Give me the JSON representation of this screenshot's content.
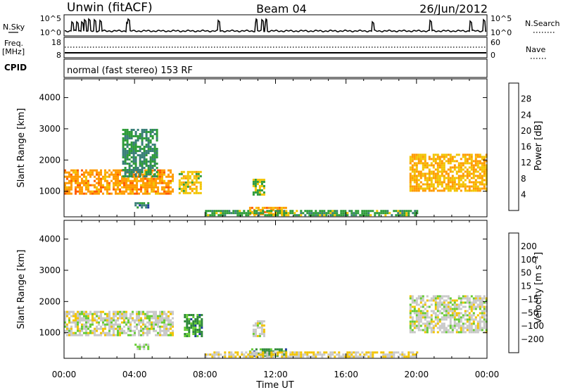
{
  "header": {
    "radar": "Unwin (fitACF)",
    "beam": "Beam 04",
    "date": "26/Jun/2012"
  },
  "top_panels": {
    "nsky": {
      "label": "N.Sky",
      "ticks": [
        "10^5",
        "10^0"
      ]
    },
    "nsearch": {
      "label": "N.Search",
      "ticks": [
        "10^5",
        "10^0"
      ]
    },
    "freq": {
      "label_line1": "Freq.",
      "label_line2": "[MHz]",
      "ticks": [
        "18",
        "8"
      ]
    },
    "nave": {
      "label": "Nave",
      "ticks": [
        "60",
        "0"
      ]
    },
    "cpid": {
      "label": "CPID",
      "text": "normal (fast stereo) 153 RF"
    }
  },
  "chart_data": [
    {
      "type": "heatmap",
      "title": "",
      "xlabel": "Time UT",
      "ylabel": "Slant Range [km]",
      "x_ticks": [
        "00:00",
        "04:00",
        "08:00",
        "12:00",
        "16:00",
        "20:00",
        "00:00"
      ],
      "y_ticks": [
        1000,
        2000,
        3000,
        4000
      ],
      "xlim_hours": [
        0,
        24
      ],
      "ylim_km": [
        180,
        4600
      ],
      "colorbar": {
        "label": "Power [dB]",
        "ticks": [
          "28",
          "24",
          "20",
          "16",
          "12",
          "8",
          "4"
        ],
        "colors": [
          "#ff0000",
          "#ff5a00",
          "#ff9a00",
          "#f2c400",
          "#2f9c3a",
          "#3a7f78",
          "#1f3d9c",
          "#0a0aff"
        ],
        "range": [
          0,
          32
        ]
      },
      "regions": [
        {
          "t0": 0.0,
          "t1": 6.2,
          "r0": 900,
          "r1": 1700,
          "value": 22
        },
        {
          "t0": 3.3,
          "t1": 5.3,
          "r0": 1500,
          "r1": 3000,
          "value": 12
        },
        {
          "t0": 6.5,
          "t1": 7.8,
          "r0": 950,
          "r1": 1650,
          "value": 18
        },
        {
          "t0": 4.0,
          "t1": 4.8,
          "r0": 450,
          "r1": 650,
          "value": 10
        },
        {
          "t0": 10.7,
          "t1": 11.3,
          "r0": 900,
          "r1": 1400,
          "value": 16
        },
        {
          "t0": 10.5,
          "t1": 12.6,
          "r0": 280,
          "r1": 500,
          "value": 22
        },
        {
          "t0": 8.0,
          "t1": 20.0,
          "r0": 220,
          "r1": 400,
          "value": 14
        },
        {
          "t0": 19.6,
          "t1": 24.0,
          "r0": 1000,
          "r1": 2200,
          "value": 20
        }
      ]
    },
    {
      "type": "heatmap",
      "title": "",
      "xlabel": "Time UT",
      "ylabel": "Slant Range [km]",
      "x_ticks": [
        "00:00",
        "04:00",
        "08:00",
        "12:00",
        "16:00",
        "20:00",
        "00:00"
      ],
      "y_ticks": [
        1000,
        2000,
        3000,
        4000
      ],
      "xlim_hours": [
        0,
        24
      ],
      "ylim_km": [
        180,
        4600
      ],
      "colorbar": {
        "label": "Velocity [m s^-1]",
        "ticks": [
          "200",
          "100",
          "50",
          "15",
          "−15",
          "−50",
          "−100",
          "−200"
        ],
        "colors": [
          "#ff0000",
          "#ff5a00",
          "#ff9a00",
          "#f2c400",
          "#c8c8c8",
          "#66cc33",
          "#2f8a3a",
          "#1f3d9c",
          "#0a0aff"
        ],
        "range": [
          -250,
          250
        ]
      },
      "regions": [
        {
          "t0": 0.0,
          "t1": 6.2,
          "r0": 900,
          "r1": 1700,
          "value": 0
        },
        {
          "t0": 19.6,
          "t1": 24.0,
          "r0": 1000,
          "r1": 2200,
          "value": 0
        },
        {
          "t0": 6.8,
          "t1": 7.8,
          "r0": 900,
          "r1": 1600,
          "value": -100
        },
        {
          "t0": 10.5,
          "t1": 12.6,
          "r0": 280,
          "r1": 500,
          "value": -100
        },
        {
          "t0": 4.0,
          "t1": 4.8,
          "r0": 450,
          "r1": 650,
          "value": -50
        },
        {
          "t0": 10.7,
          "t1": 11.3,
          "r0": 900,
          "r1": 1400,
          "value": 0
        },
        {
          "t0": 8.0,
          "t1": 20.0,
          "r0": 220,
          "r1": 400,
          "value": 30
        }
      ]
    }
  ]
}
